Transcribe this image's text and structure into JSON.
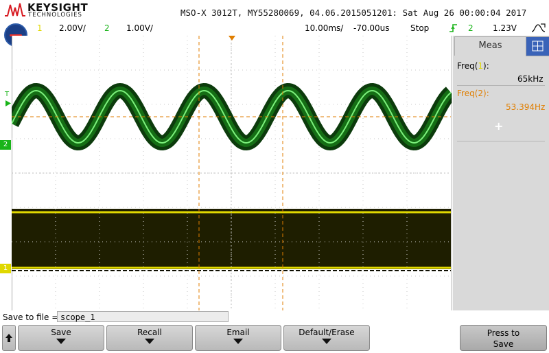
{
  "brand": {
    "name": "KEYSIGHT",
    "sub": "TECHNOLOGIES"
  },
  "header": {
    "title": "MSO-X 3012T, MY55280069, 04.06.2015051201: Sat Aug 26 00:00:04 2017"
  },
  "status": {
    "ch1": {
      "number": "1",
      "scale": "2.00V/"
    },
    "ch2": {
      "number": "2",
      "scale": "1.00V/"
    },
    "timebase": "10.00ms/",
    "delay": "-70.00us",
    "run_state": "Stop",
    "trigger_channel": "2",
    "trigger_level": "1.23V"
  },
  "markers": {
    "trigger_level": "T",
    "ch2_ground": "2",
    "ch1_ground": "1"
  },
  "colors": {
    "ch1": "#e0d800",
    "ch2": "#19b419",
    "cursor": "#e07e00",
    "panel": "#d9d9d9",
    "accent": "#3a63b8"
  },
  "measurements": {
    "tab_label": "Meas",
    "items": [
      {
        "label_prefix": "Freq(",
        "channel": "1",
        "label_suffix": "):",
        "value": "65kHz",
        "color": "#000000"
      },
      {
        "label_prefix": "Freq(",
        "channel": "2",
        "label_suffix": "):",
        "value": "53.394Hz",
        "color": "#e07e00"
      }
    ],
    "add_symbol": "+"
  },
  "save": {
    "label": "Save to file =",
    "filename": "scope_1",
    "softkeys": [
      "Save",
      "Recall",
      "Email",
      "Default/Erase"
    ],
    "press_line1": "Press to",
    "press_line2": "Save"
  },
  "icons": {
    "back": "up-arrow-icon",
    "trigger": "rising-edge-icon",
    "acquire": "acquire-icon",
    "channel_toggle": "channel-toggle-icon"
  }
}
